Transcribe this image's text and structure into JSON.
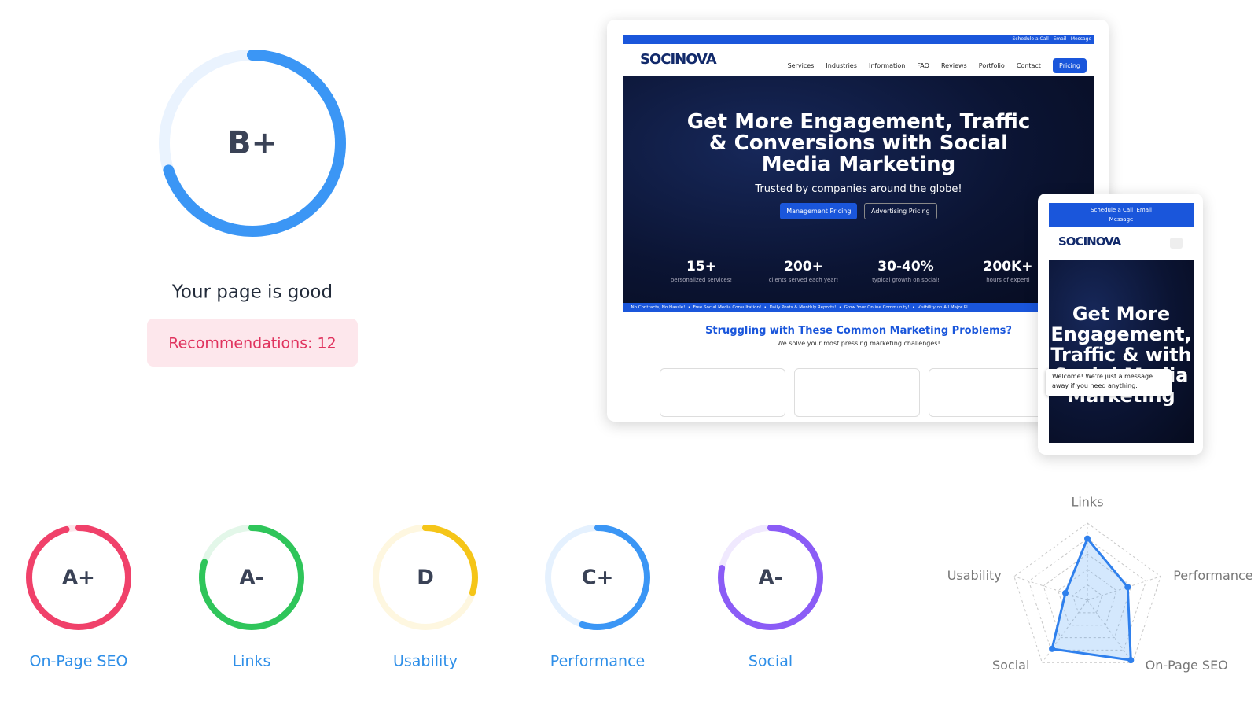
{
  "overall": {
    "grade": "B+",
    "score": 70,
    "status": "Your page is good",
    "recommendations": "Recommendations: 12"
  },
  "categories": [
    {
      "name": "On-Page SEO",
      "grade": "A+",
      "score": 96,
      "color": "#f0416a"
    },
    {
      "name": "Links",
      "grade": "A-",
      "score": 80,
      "color": "#2fc55a"
    },
    {
      "name": "Usability",
      "grade": "D",
      "score": 30,
      "color": "#f5c518"
    },
    {
      "name": "Performance",
      "grade": "C+",
      "score": 55,
      "color": "#3b96f5"
    },
    {
      "name": "Social",
      "grade": "A-",
      "score": 78,
      "color": "#8b5cf6"
    }
  ],
  "radar": {
    "axes": [
      "Links",
      "Performance",
      "On-Page SEO",
      "Social",
      "Usability"
    ],
    "max": 100
  },
  "preview": {
    "topbar": [
      "Schedule a Call",
      "Email",
      "Message"
    ],
    "logo": "SOCINOVA",
    "nav": [
      "Services",
      "Industries",
      "Information",
      "FAQ",
      "Reviews",
      "Portfolio",
      "Contact"
    ],
    "nav_button": "Pricing",
    "headline": "Get More Engagement, Traffic & Conversions with Social Media Marketing",
    "subheadline": "Trusted by companies around the globe!",
    "buttons": [
      "Management Pricing",
      "Advertising Pricing"
    ],
    "stats": [
      {
        "value": "15+",
        "label": "personalized services!"
      },
      {
        "value": "200+",
        "label": "clients served each year!"
      },
      {
        "value": "30-40%",
        "label": "typical growth on social!"
      },
      {
        "value": "200K+",
        "label": "hours of experti"
      }
    ],
    "ticker": [
      "No Contracts, No Hassle!",
      "Free Social Media Consultation!",
      "Daily Posts & Monthly Reports!",
      "Grow Your Online Community!",
      "Visibility on All Major Pl"
    ],
    "section_title": "Struggling with These Common Marketing Problems?",
    "section_subtitle": "We solve your most pressing marketing challenges!",
    "chat": "Welcome! We're just a message away if you need anything.",
    "mobile_headline": "Get More Engagement, Traffic & with Social Media Marketing"
  }
}
